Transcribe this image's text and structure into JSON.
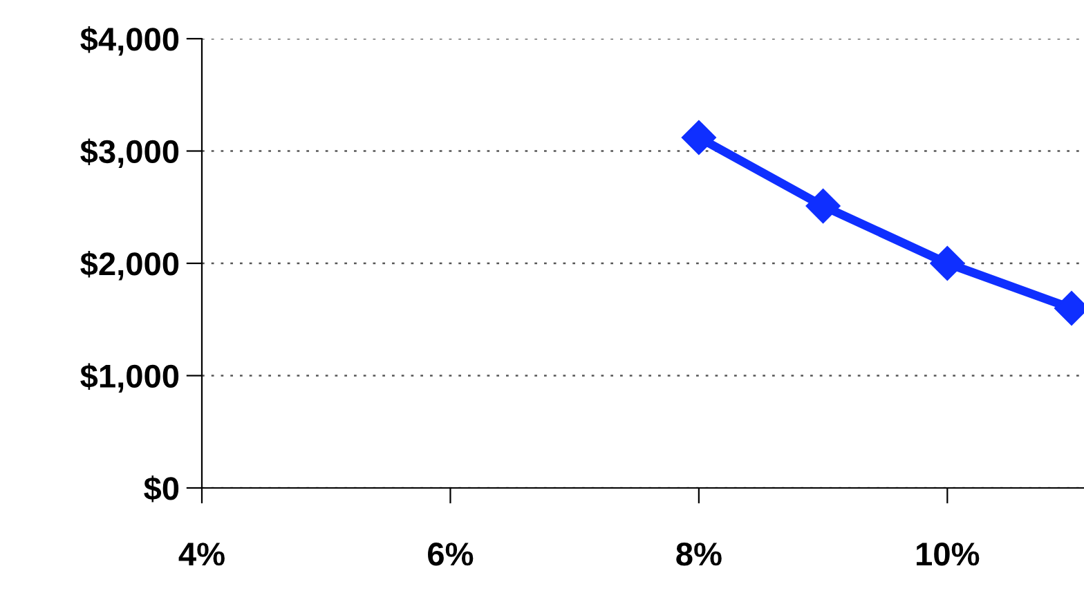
{
  "chart_data": {
    "type": "line",
    "x": [
      8,
      9,
      10,
      11
    ],
    "series": [
      {
        "color": "#0f2fff",
        "values": [
          3120,
          2510,
          2000,
          1600
        ]
      }
    ],
    "xlim": [
      4,
      11.1
    ],
    "xticks": [
      {
        "value": 4,
        "label": "4%"
      },
      {
        "value": 6,
        "label": "6%"
      },
      {
        "value": 8,
        "label": "8%"
      },
      {
        "value": 10,
        "label": "10%"
      }
    ],
    "ylim": [
      0,
      4000
    ],
    "yticks": [
      {
        "value": 0,
        "label": "$0"
      },
      {
        "value": 1000,
        "label": "$1,000"
      },
      {
        "value": 2000,
        "label": "$2,000"
      },
      {
        "value": 3000,
        "label": "$3,000"
      },
      {
        "value": 4000,
        "label": "$4,000"
      }
    ],
    "grid": "y",
    "marker": "diamond",
    "line_style": "solid",
    "legend": false
  }
}
